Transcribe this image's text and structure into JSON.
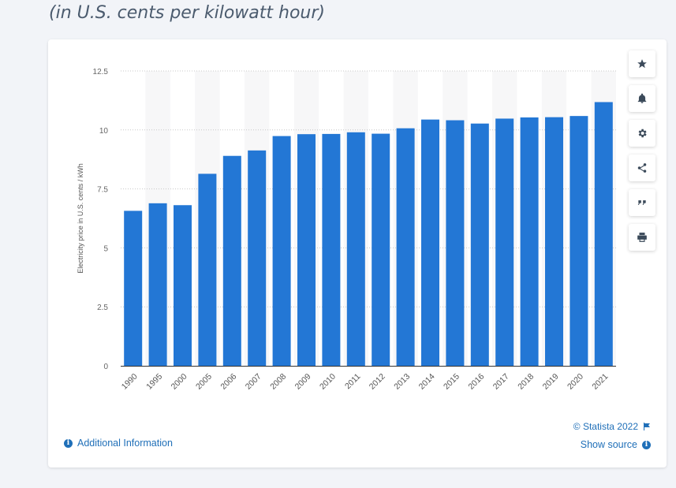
{
  "subtitle": "(in U.S. cents per kilowatt hour)",
  "colors": {
    "bar": "#2377d5",
    "band": "#f7f7f8",
    "grid": "#c8c8c8",
    "axis": "#333333",
    "link": "#1f6fb8"
  },
  "toolbar": {
    "items": [
      {
        "name": "favorite-star-icon"
      },
      {
        "name": "notification-bell-icon"
      },
      {
        "name": "settings-gear-icon"
      },
      {
        "name": "share-icon"
      },
      {
        "name": "cite-quote-icon"
      },
      {
        "name": "print-icon"
      }
    ]
  },
  "footer": {
    "additional_info": "Additional Information",
    "copyright": "© Statista 2022",
    "show_source": "Show source"
  },
  "chart_data": {
    "type": "bar",
    "categories": [
      "1990",
      "1995",
      "2000",
      "2005",
      "2006",
      "2007",
      "2008",
      "2009",
      "2010",
      "2011",
      "2012",
      "2013",
      "2014",
      "2015",
      "2016",
      "2017",
      "2018",
      "2019",
      "2020",
      "2021"
    ],
    "values": [
      6.57,
      6.89,
      6.81,
      8.14,
      8.9,
      9.13,
      9.74,
      9.82,
      9.83,
      9.9,
      9.84,
      10.07,
      10.44,
      10.41,
      10.27,
      10.48,
      10.53,
      10.54,
      10.59,
      11.18
    ],
    "ylabel": "Electricity price in U.S. cents / kWh",
    "xlabel": "",
    "ylim": [
      0,
      12.5
    ],
    "yticks": [
      0,
      2.5,
      5,
      7.5,
      10,
      12.5
    ],
    "ytick_labels": [
      "0",
      "2.5",
      "5",
      "7.5",
      "10",
      "12.5"
    ],
    "grid": true
  }
}
